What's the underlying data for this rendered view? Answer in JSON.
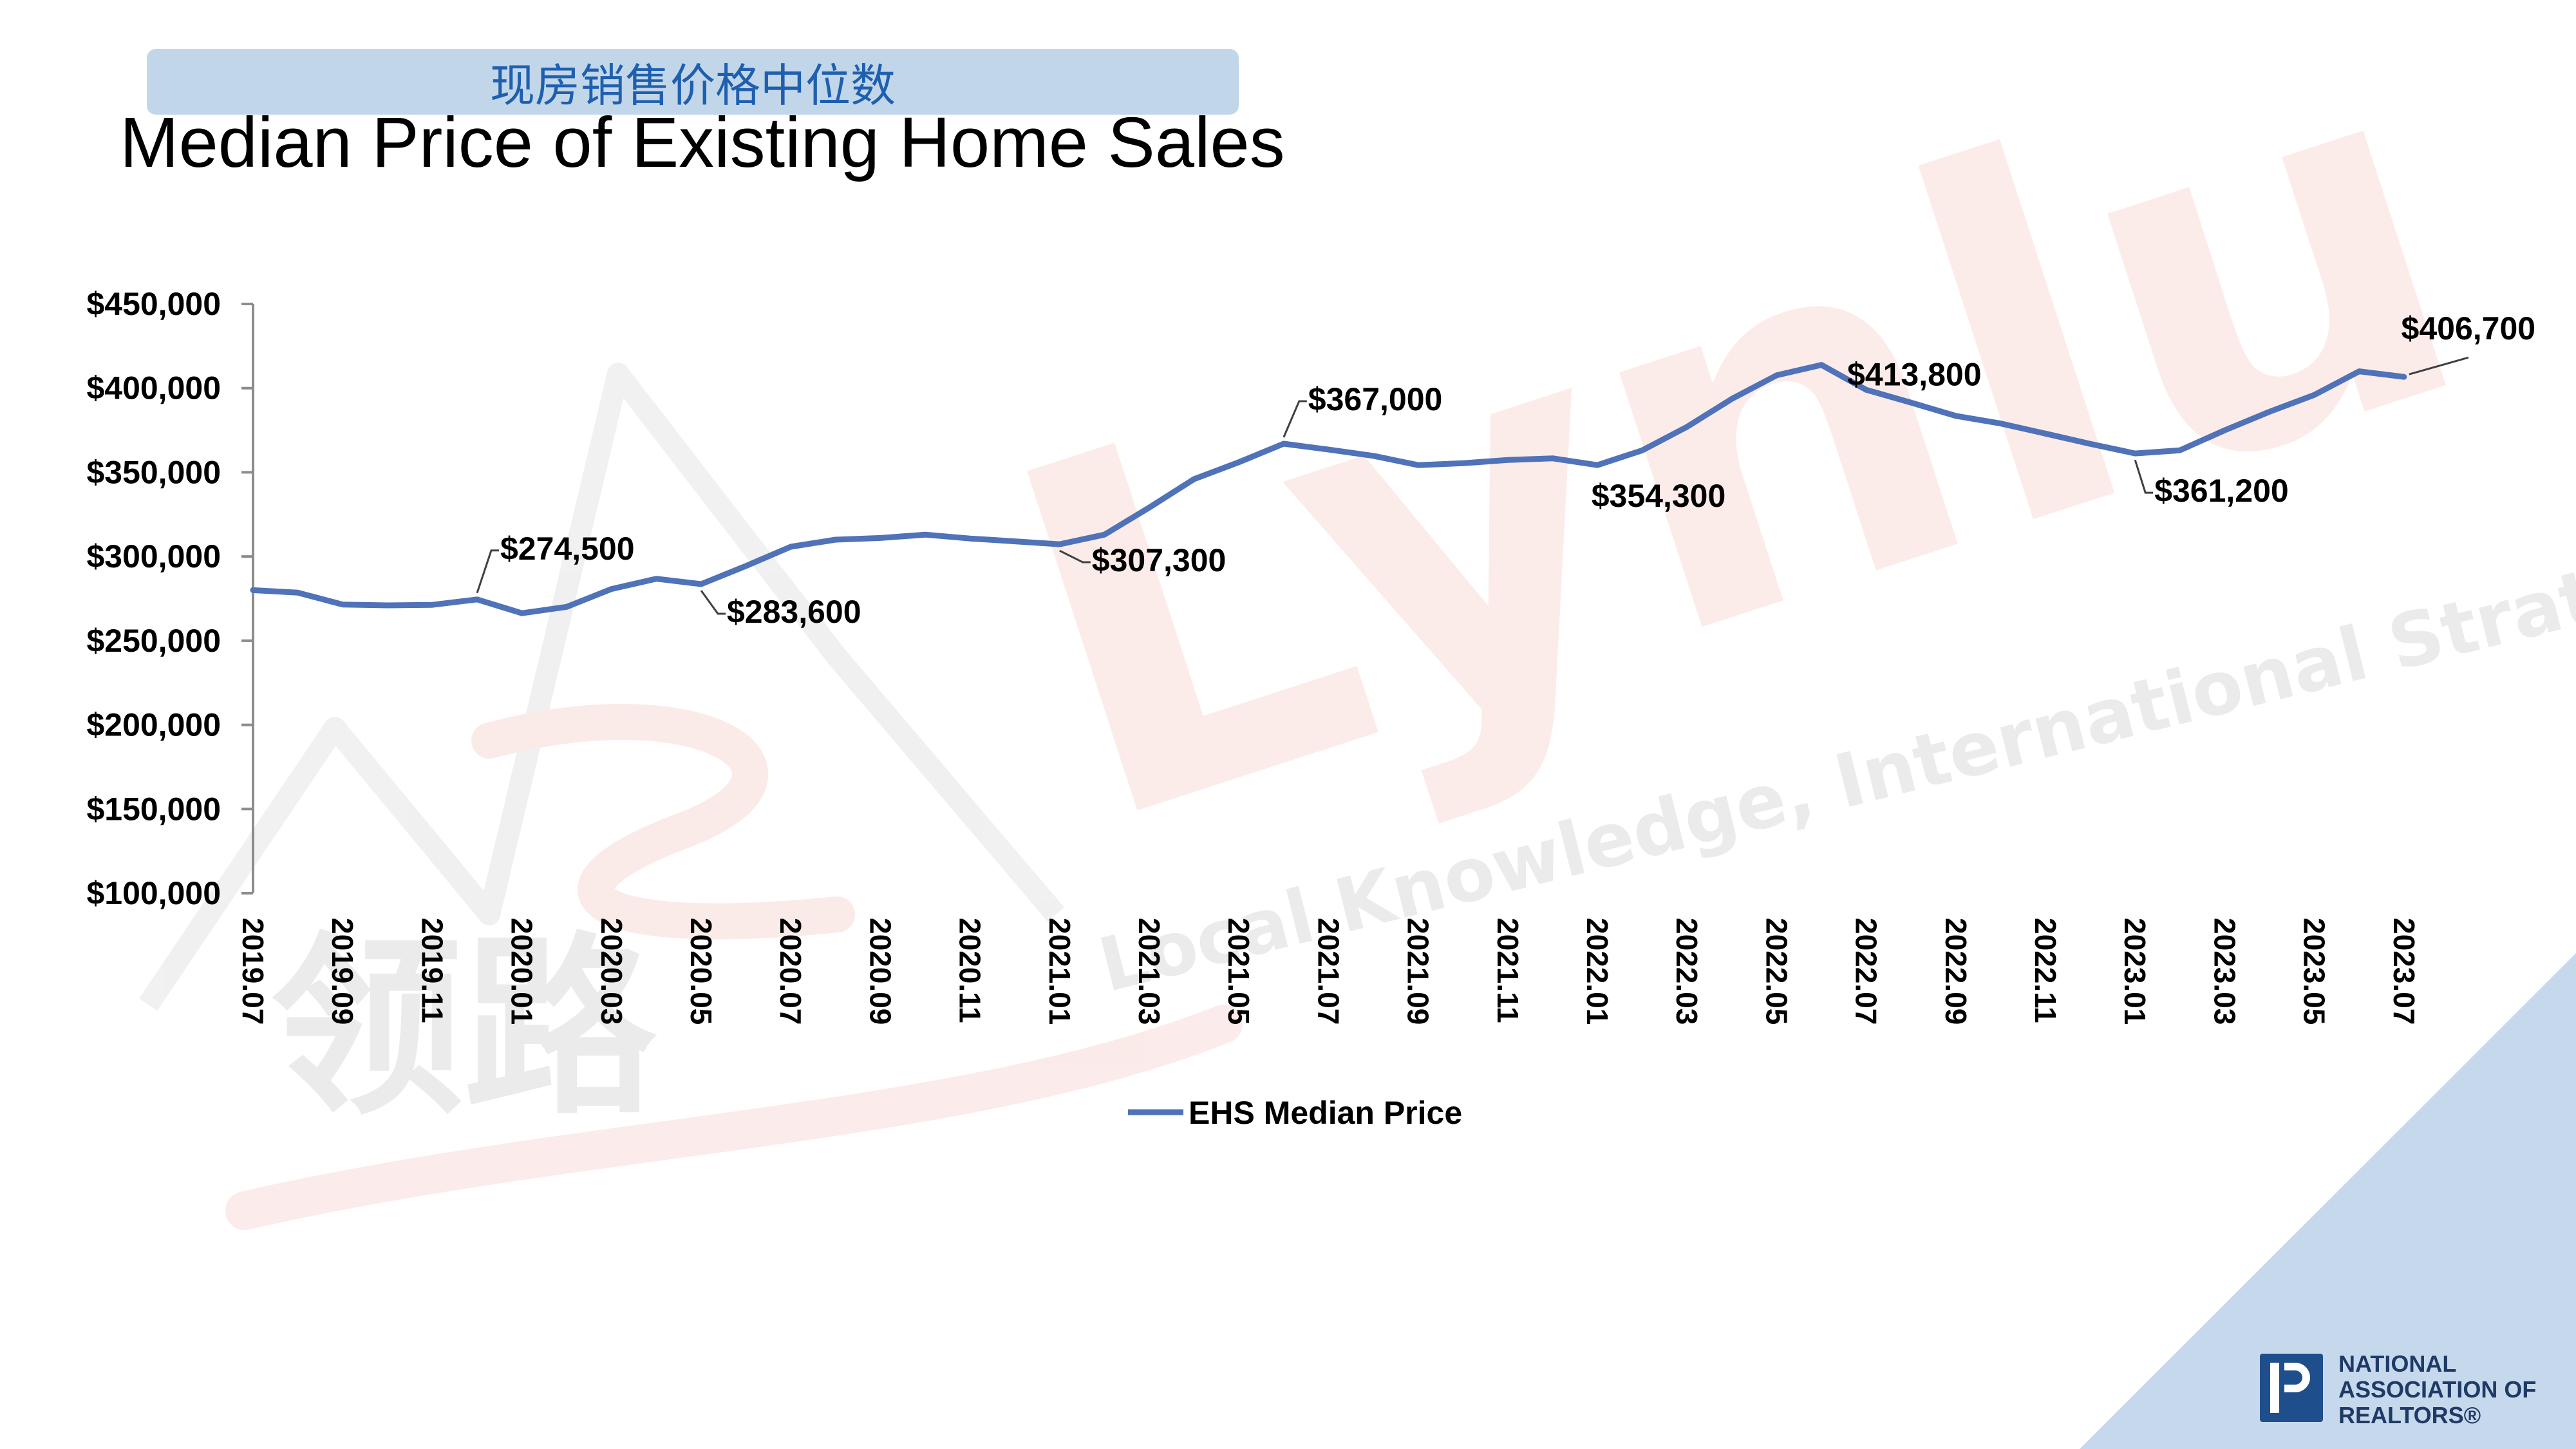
{
  "title_cn": "现房销售价格中位数",
  "title_en": "Median Price of Existing Home Sales",
  "watermark": {
    "brand": "Lynlu",
    "tagline": "Local Knowledge, International Strategy",
    "cn_text": "领路",
    "color": "#f6c9c6"
  },
  "logo": {
    "line1": "NATIONAL",
    "line2": "ASSOCIATION OF",
    "line3": "REALTORS®",
    "color": "#1f4e8c"
  },
  "colors": {
    "line": "#4f72b8",
    "accent_triangle": "#c6d9ec"
  },
  "chart_data": {
    "type": "line",
    "title": "Median Price of Existing Home Sales",
    "legend_position": "bottom-center",
    "grid": false,
    "ylim": [
      100000,
      450000
    ],
    "y_ticks": [
      "$450,000",
      "$400,000",
      "$350,000",
      "$300,000",
      "$250,000",
      "$200,000",
      "$150,000",
      "$100,000"
    ],
    "y_tick_values": [
      450000,
      400000,
      350000,
      300000,
      250000,
      200000,
      150000,
      100000
    ],
    "x_tick_labels": [
      "2019.07",
      "2019.09",
      "2019.11",
      "2020.01",
      "2020.03",
      "2020.05",
      "2020.07",
      "2020.09",
      "2020.11",
      "2021.01",
      "2021.03",
      "2021.05",
      "2021.07",
      "2021.09",
      "2021.11",
      "2022.01",
      "2022.03",
      "2022.05",
      "2022.07",
      "2022.09",
      "2022.11",
      "2023.01",
      "2023.03",
      "2023.05",
      "2023.07"
    ],
    "series": [
      {
        "name": "EHS Median Price",
        "x": [
          "2019.07",
          "2019.08",
          "2019.09",
          "2019.10",
          "2019.11",
          "2019.12",
          "2020.01",
          "2020.02",
          "2020.03",
          "2020.04",
          "2020.05",
          "2020.06",
          "2020.07",
          "2020.08",
          "2020.09",
          "2020.10",
          "2020.11",
          "2020.12",
          "2021.01",
          "2021.02",
          "2021.03",
          "2021.04",
          "2021.05",
          "2021.06",
          "2021.07",
          "2021.08",
          "2021.09",
          "2021.10",
          "2021.11",
          "2021.12",
          "2022.01",
          "2022.02",
          "2022.03",
          "2022.04",
          "2022.05",
          "2022.06",
          "2022.07",
          "2022.08",
          "2022.09",
          "2022.10",
          "2022.11",
          "2022.12",
          "2023.01",
          "2023.02",
          "2023.03",
          "2023.04",
          "2023.05",
          "2023.06",
          "2023.07"
        ],
        "values": [
          280000,
          278500,
          271500,
          271000,
          271300,
          274500,
          266300,
          270100,
          280700,
          286800,
          283600,
          294400,
          305800,
          310000,
          311000,
          313000,
          310700,
          309000,
          307300,
          313000,
          329100,
          346000,
          356000,
          367000,
          363500,
          359800,
          354300,
          355400,
          357300,
          358300,
          354300,
          363000,
          377000,
          393600,
          407600,
          413800,
          399000,
          391400,
          383500,
          379000,
          373000,
          366900,
          361200,
          363100,
          375000,
          386000,
          396000,
          410000,
          406700
        ]
      }
    ],
    "annotations": [
      {
        "x": "2019.12",
        "label": "$274,500"
      },
      {
        "x": "2020.05",
        "label": "$283,600"
      },
      {
        "x": "2021.01",
        "label": "$307,300"
      },
      {
        "x": "2021.06",
        "label": "$367,000"
      },
      {
        "x": "2022.01",
        "label": "$354,300"
      },
      {
        "x": "2022.06",
        "label": "$413,800"
      },
      {
        "x": "2023.01",
        "label": "$361,200"
      },
      {
        "x": "2023.07",
        "label": "$406,700"
      }
    ]
  }
}
